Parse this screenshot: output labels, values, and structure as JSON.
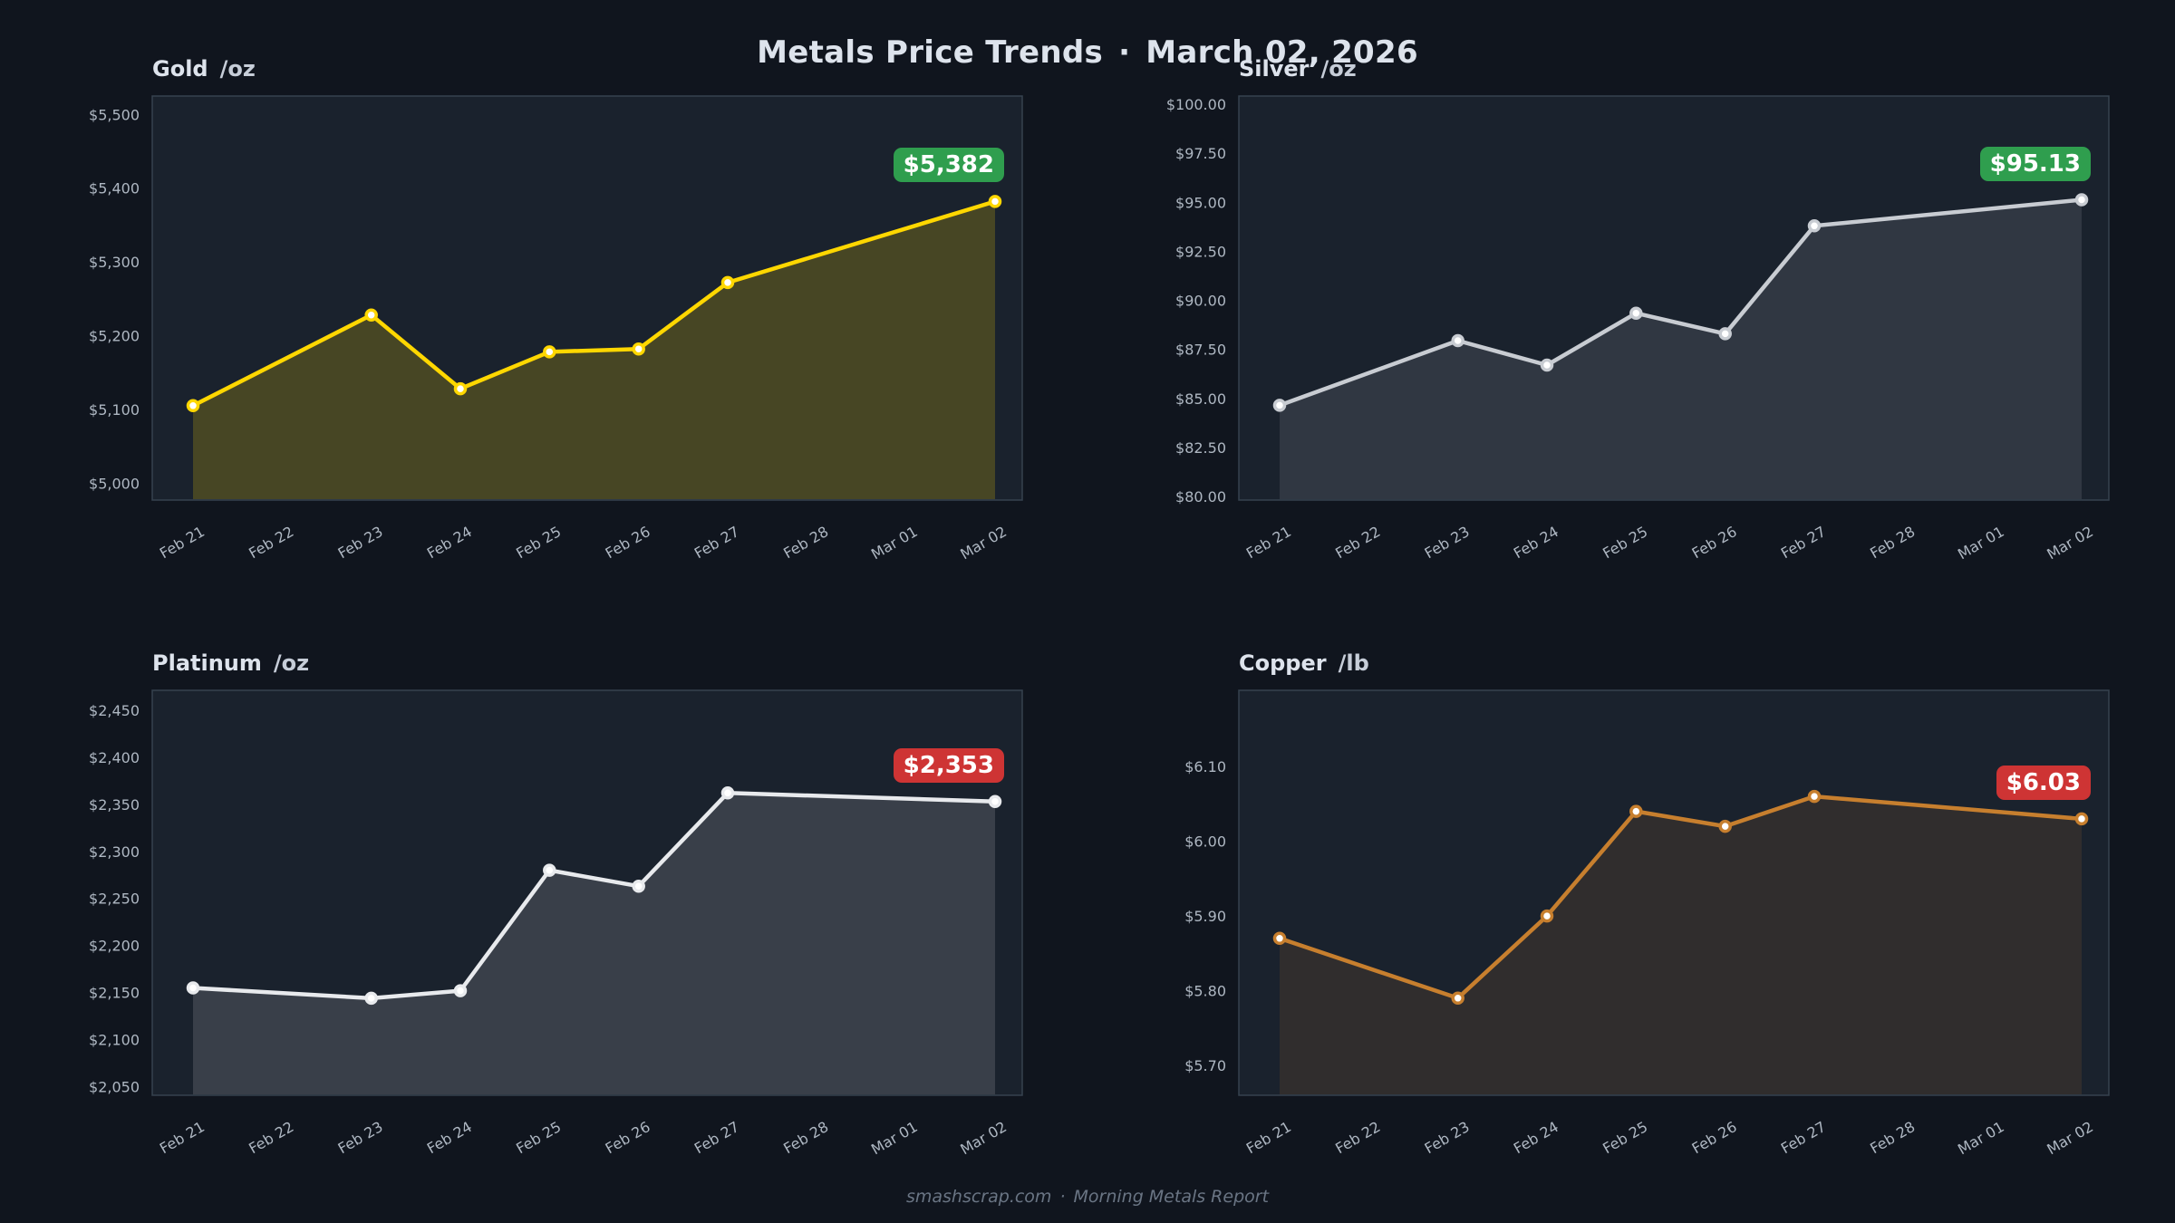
{
  "header": {
    "title": "Metals Price Trends",
    "separator": "·",
    "date": "March 02, 2026"
  },
  "footer": {
    "site": "smashscrap.com",
    "separator": "·",
    "report": "Morning Metals Report"
  },
  "colors": {
    "page_bg": "#10151e",
    "panel_bg": "#1a222d",
    "panel_border": "#36424f",
    "tick_text": "#aeb7c2",
    "title_text": "#dde3ec",
    "unit_text": "#c6cdd8",
    "footer_text": "#6a7584",
    "badge_text": "#ffffff",
    "marker_fill": "#ffffff",
    "badge_green": "#2f9e4e",
    "badge_red": "#ce3434"
  },
  "chart_data": {
    "type": "line",
    "categories": [
      "Feb 21",
      "Feb 22",
      "Feb 23",
      "Feb 24",
      "Feb 25",
      "Feb 26",
      "Feb 27",
      "Feb 28",
      "Mar 01",
      "Mar 02"
    ],
    "charts": [
      {
        "metal": "Gold",
        "unit": "/oz",
        "line_color": "#ffd700",
        "fill_opacity": 0.2,
        "badge": {
          "text": "$5,382",
          "bg": "#2f9e4e"
        },
        "y_domain": [
          4977,
          5525
        ],
        "y_ticks": [
          {
            "v": 5000,
            "label": "$5,000"
          },
          {
            "v": 5100,
            "label": "$5,100"
          },
          {
            "v": 5200,
            "label": "$5,200"
          },
          {
            "v": 5300,
            "label": "$5,300"
          },
          {
            "v": 5400,
            "label": "$5,400"
          },
          {
            "v": 5500,
            "label": "$5,500"
          }
        ],
        "points": [
          {
            "date": "Feb 21",
            "value": 5105
          },
          {
            "date": "Feb 23",
            "value": 5228
          },
          {
            "date": "Feb 24",
            "value": 5128
          },
          {
            "date": "Feb 25",
            "value": 5178
          },
          {
            "date": "Feb 26",
            "value": 5182
          },
          {
            "date": "Feb 27",
            "value": 5272
          },
          {
            "date": "Mar 02",
            "value": 5382
          }
        ]
      },
      {
        "metal": "Silver",
        "unit": "/oz",
        "line_color": "#c8ccd2",
        "fill_opacity": 0.13,
        "badge": {
          "text": "$95.13",
          "bg": "#2f9e4e"
        },
        "y_domain": [
          79.82,
          100.42
        ],
        "y_ticks": [
          {
            "v": 80.0,
            "label": "$80.00"
          },
          {
            "v": 82.5,
            "label": "$82.50"
          },
          {
            "v": 85.0,
            "label": "$85.00"
          },
          {
            "v": 87.5,
            "label": "$87.50"
          },
          {
            "v": 90.0,
            "label": "$90.00"
          },
          {
            "v": 92.5,
            "label": "$92.50"
          },
          {
            "v": 95.0,
            "label": "$95.00"
          },
          {
            "v": 97.5,
            "label": "$97.50"
          },
          {
            "v": 100.0,
            "label": "$100.00"
          }
        ],
        "points": [
          {
            "date": "Feb 21",
            "value": 84.65
          },
          {
            "date": "Feb 23",
            "value": 87.95
          },
          {
            "date": "Feb 24",
            "value": 86.7
          },
          {
            "date": "Feb 25",
            "value": 89.35
          },
          {
            "date": "Feb 26",
            "value": 88.3
          },
          {
            "date": "Feb 27",
            "value": 93.8
          },
          {
            "date": "Mar 02",
            "value": 95.13
          }
        ]
      },
      {
        "metal": "Platinum",
        "unit": "/oz",
        "line_color": "#e8eaed",
        "fill_opacity": 0.15,
        "badge": {
          "text": "$2,353",
          "bg": "#ce3434"
        },
        "y_domain": [
          2041,
          2471
        ],
        "y_ticks": [
          {
            "v": 2050,
            "label": "$2,050"
          },
          {
            "v": 2100,
            "label": "$2,100"
          },
          {
            "v": 2150,
            "label": "$2,150"
          },
          {
            "v": 2200,
            "label": "$2,200"
          },
          {
            "v": 2250,
            "label": "$2,250"
          },
          {
            "v": 2300,
            "label": "$2,300"
          },
          {
            "v": 2350,
            "label": "$2,350"
          },
          {
            "v": 2400,
            "label": "$2,400"
          },
          {
            "v": 2450,
            "label": "$2,450"
          }
        ],
        "points": [
          {
            "date": "Feb 21",
            "value": 2155
          },
          {
            "date": "Feb 23",
            "value": 2144
          },
          {
            "date": "Feb 24",
            "value": 2152
          },
          {
            "date": "Feb 25",
            "value": 2280
          },
          {
            "date": "Feb 26",
            "value": 2263
          },
          {
            "date": "Feb 27",
            "value": 2362
          },
          {
            "date": "Mar 02",
            "value": 2353
          }
        ]
      },
      {
        "metal": "Copper",
        "unit": "/lb",
        "line_color": "#c77f2e",
        "fill_opacity": 0.13,
        "badge": {
          "text": "$6.03",
          "bg": "#ce3434"
        },
        "y_domain": [
          5.66,
          6.202
        ],
        "y_ticks": [
          {
            "v": 5.7,
            "label": "$5.70"
          },
          {
            "v": 5.8,
            "label": "$5.80"
          },
          {
            "v": 5.9,
            "label": "$5.90"
          },
          {
            "v": 6.0,
            "label": "$6.00"
          },
          {
            "v": 6.1,
            "label": "$6.10"
          }
        ],
        "points": [
          {
            "date": "Feb 21",
            "value": 5.87
          },
          {
            "date": "Feb 23",
            "value": 5.79
          },
          {
            "date": "Feb 24",
            "value": 5.9
          },
          {
            "date": "Feb 25",
            "value": 6.04
          },
          {
            "date": "Feb 26",
            "value": 6.02
          },
          {
            "date": "Feb 27",
            "value": 6.06
          },
          {
            "date": "Mar 02",
            "value": 6.03
          }
        ]
      }
    ]
  }
}
